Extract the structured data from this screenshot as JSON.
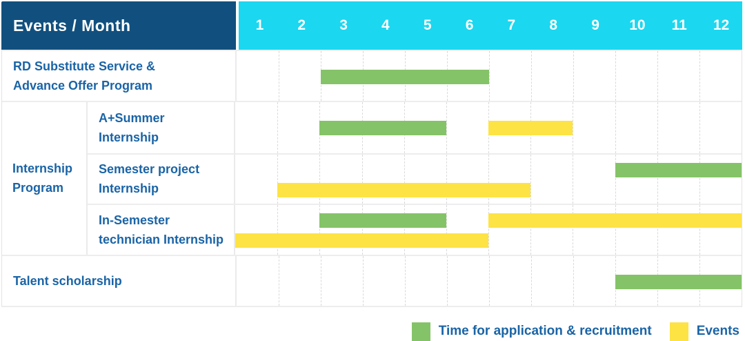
{
  "header": {
    "label": "Events / Month",
    "months": [
      "1",
      "2",
      "3",
      "4",
      "5",
      "6",
      "7",
      "8",
      "9",
      "10",
      "11",
      "12"
    ]
  },
  "colors": {
    "header_bg": "#11507E",
    "months_bg": "#1BD7EF",
    "label_text": "#1A64A6",
    "green": "#85C368",
    "yellow": "#FDE344"
  },
  "group": {
    "label": "Internship\nProgram"
  },
  "rows": [
    {
      "label": "RD Substitute Service &\nAdvance Offer Program",
      "bars": [
        {
          "color": "green",
          "start_month": 3,
          "end_month": 6,
          "line": "center"
        }
      ]
    },
    {
      "label": "A+Summer\nInternship",
      "bars": [
        {
          "color": "green",
          "start_month": 3,
          "end_month": 5,
          "line": "center"
        },
        {
          "color": "yellow",
          "start_month": 7,
          "end_month": 8,
          "line": "center"
        }
      ]
    },
    {
      "label": "Semester project\nInternship",
      "bars": [
        {
          "color": "green",
          "start_month": 10,
          "end_month": 12,
          "line": "top"
        },
        {
          "color": "yellow",
          "start_month": 2,
          "end_month": 7,
          "line": "bottom"
        }
      ]
    },
    {
      "label": "In-Semester\ntechnician Internship",
      "bars": [
        {
          "color": "green",
          "start_month": 3,
          "end_month": 5,
          "line": "top"
        },
        {
          "color": "yellow",
          "start_month": 7,
          "end_month": 12,
          "line": "top"
        },
        {
          "color": "yellow",
          "start_month": 1,
          "end_month": 6,
          "line": "bottom"
        }
      ]
    },
    {
      "label": "Talent scholarship",
      "bars": [
        {
          "color": "green",
          "start_month": 10,
          "end_month": 12,
          "line": "center"
        }
      ]
    }
  ],
  "legend": [
    {
      "color": "green",
      "label": "Time for application & recruitment"
    },
    {
      "color": "yellow",
      "label": "Events"
    }
  ],
  "chart_data": {
    "type": "bar",
    "subtype": "gantt",
    "title": "Events / Month",
    "xlabel": "Month",
    "x_ticks": [
      1,
      2,
      3,
      4,
      5,
      6,
      7,
      8,
      9,
      10,
      11,
      12
    ],
    "xlim": [
      1,
      12
    ],
    "grid": "vertical-dashed",
    "legend_position": "bottom-right",
    "series_names": [
      "Time for application & recruitment",
      "Events"
    ],
    "rows": [
      {
        "category": "RD Substitute Service & Advance Offer Program",
        "group": null,
        "spans": [
          {
            "series": "Time for application & recruitment",
            "start": 3,
            "end": 6
          }
        ]
      },
      {
        "category": "A+Summer Internship",
        "group": "Internship Program",
        "spans": [
          {
            "series": "Time for application & recruitment",
            "start": 3,
            "end": 5
          },
          {
            "series": "Events",
            "start": 7,
            "end": 8
          }
        ]
      },
      {
        "category": "Semester project Internship",
        "group": "Internship Program",
        "spans": [
          {
            "series": "Time for application & recruitment",
            "start": 10,
            "end": 12
          },
          {
            "series": "Events",
            "start": 2,
            "end": 7
          }
        ]
      },
      {
        "category": "In-Semester technician Internship",
        "group": "Internship Program",
        "spans": [
          {
            "series": "Time for application & recruitment",
            "start": 3,
            "end": 5
          },
          {
            "series": "Events",
            "start": 7,
            "end": 12
          },
          {
            "series": "Events",
            "start": 1,
            "end": 6
          }
        ]
      },
      {
        "category": "Talent scholarship",
        "group": null,
        "spans": [
          {
            "series": "Time for application & recruitment",
            "start": 10,
            "end": 12
          }
        ]
      }
    ]
  }
}
